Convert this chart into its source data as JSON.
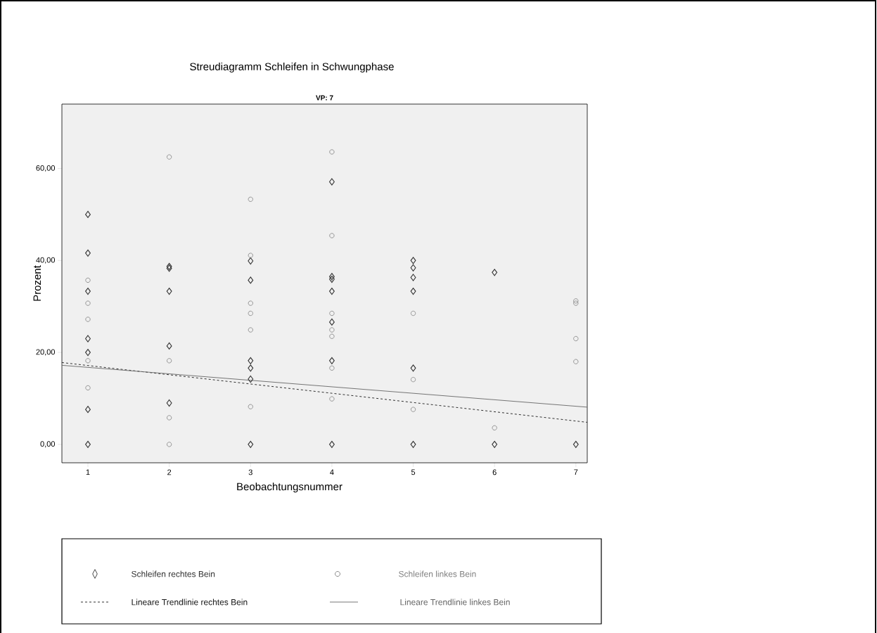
{
  "chart_data": {
    "type": "scatter",
    "title": "Streudiagramm Schleifen in Schwungphase",
    "subtitle": "VP: 7",
    "xlabel": "Beobachtungsnummer",
    "ylabel": "Prozent",
    "xlim": [
      0.68,
      7.14
    ],
    "ylim": [
      -4,
      74
    ],
    "xticks": [
      1,
      2,
      3,
      4,
      5,
      6,
      7
    ],
    "yticks": [
      {
        "value": 0,
        "label": "0,00"
      },
      {
        "value": 20,
        "label": "20,00"
      },
      {
        "value": 40,
        "label": "40,00"
      },
      {
        "value": 60,
        "label": "60,00"
      }
    ],
    "legend": "bottom",
    "grid": false,
    "series": [
      {
        "name": "Schleifen rechtes Bein",
        "marker": "diamond",
        "color": "#333333",
        "x": [
          1,
          1,
          1,
          1,
          1,
          1,
          1,
          2,
          2,
          2,
          2,
          2,
          3,
          3,
          3,
          3,
          3,
          3,
          4,
          4,
          4,
          4,
          4,
          4,
          4,
          5,
          5,
          5,
          5,
          5,
          5,
          6,
          6,
          7
        ],
        "values": [
          50.0,
          41.6,
          33.3,
          23.0,
          20.0,
          7.6,
          0,
          38.7,
          38.3,
          33.3,
          21.4,
          9.0,
          39.9,
          35.7,
          18.2,
          16.6,
          14.2,
          0,
          57.1,
          36.5,
          35.9,
          33.3,
          26.6,
          18.2,
          0,
          40.0,
          38.4,
          36.3,
          33.3,
          16.6,
          0,
          37.4,
          0,
          0
        ]
      },
      {
        "name": "Schleifen linkes Bein",
        "marker": "circle",
        "color": "#808080",
        "x": [
          1,
          1,
          1,
          1,
          1,
          2,
          2,
          2,
          2,
          3,
          3,
          3,
          3,
          3,
          3,
          4,
          4,
          4,
          4,
          4,
          4,
          4,
          4,
          5,
          5,
          5,
          6,
          7,
          7,
          7,
          7
        ],
        "values": [
          35.7,
          30.7,
          27.2,
          18.2,
          12.3,
          62.5,
          18.2,
          5.8,
          0,
          53.3,
          41.1,
          30.7,
          28.5,
          24.9,
          8.2,
          63.6,
          45.4,
          36.1,
          28.5,
          24.9,
          23.5,
          16.6,
          9.9,
          28.5,
          14.1,
          7.6,
          3.6,
          31.2,
          30.7,
          23.0,
          18.0
        ]
      },
      {
        "name": "Lineare Trendlinie rechtes Bein",
        "type": "line",
        "marker": "none",
        "line_style": "dashed",
        "color": "#1a1a1a",
        "x": [
          0.68,
          7.14
        ],
        "values": [
          17.8,
          4.8
        ]
      },
      {
        "name": "Lineare Trendlinie linkes Bein",
        "type": "line",
        "marker": "none",
        "line_style": "solid",
        "color": "#666666",
        "x": [
          0.68,
          7.14
        ],
        "values": [
          17.2,
          8.1
        ]
      }
    ]
  }
}
